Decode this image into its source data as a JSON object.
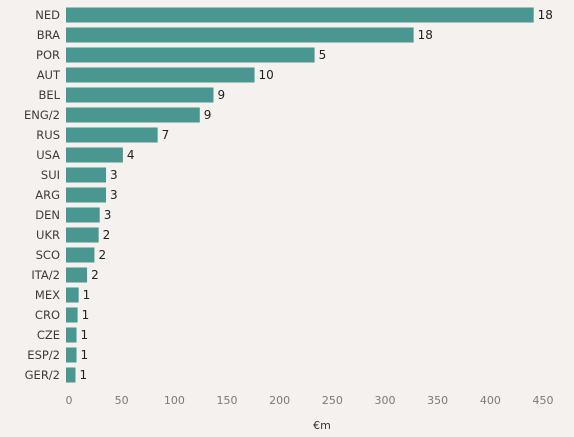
{
  "chart_data": {
    "type": "bar",
    "orientation": "horizontal",
    "categories": [
      "NED",
      "BRA",
      "POR",
      "AUT",
      "BEL",
      "ENG/2",
      "RUS",
      "USA",
      "SUI",
      "ARG",
      "DEN",
      "UKR",
      "SCO",
      "ITA/2",
      "MEX",
      "CRO",
      "CZE",
      "ESP/2",
      "GER/2"
    ],
    "values": [
      444,
      330,
      236,
      179,
      140,
      127,
      87,
      54,
      38,
      38,
      32,
      31,
      27,
      20,
      12,
      11,
      10,
      10,
      9
    ],
    "data_labels": [
      "18",
      "18",
      "5",
      "10",
      "9",
      "9",
      "7",
      "4",
      "3",
      "3",
      "3",
      "2",
      "2",
      "2",
      "1",
      "1",
      "1",
      "1",
      "1"
    ],
    "xlabel": "€m",
    "ylabel": "",
    "title": "",
    "xlim": [
      0,
      450
    ],
    "xticks": [
      0,
      50,
      100,
      150,
      200,
      250,
      300,
      350,
      400,
      450
    ],
    "grid": false,
    "legend": "none",
    "colors": {
      "bar": "#4a9690",
      "background": "#f4f1ef",
      "category_text": "#3b3b3b",
      "data_label_text": "#222222",
      "tick_text": "#7a7a7a"
    }
  }
}
